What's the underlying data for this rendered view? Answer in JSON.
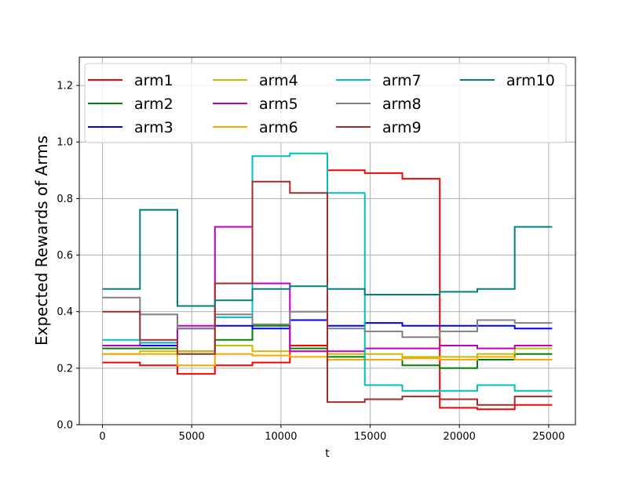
{
  "chart_data": {
    "type": "line",
    "step": true,
    "xlabel": "t",
    "ylabel": "Expected Rewards of Arms",
    "xlim": [
      -1300,
      26500
    ],
    "ylim": [
      0.0,
      1.3
    ],
    "xticks": [
      0,
      5000,
      10000,
      15000,
      20000,
      25000
    ],
    "xtick_labels": [
      "0",
      "5000",
      "10000",
      "15000",
      "20000",
      "25000"
    ],
    "yticks": [
      0.0,
      0.2,
      0.4,
      0.6,
      0.8,
      1.0,
      1.2
    ],
    "ytick_labels": [
      "0.0",
      "0.2",
      "0.4",
      "0.6",
      "0.8",
      "1.0",
      "1.2"
    ],
    "grid": true,
    "legend_position": "top",
    "legend_columns": 4,
    "breakpoints": [
      0,
      2100,
      4200,
      6300,
      8400,
      10500,
      12600,
      14700,
      16800,
      18900,
      21000,
      23100,
      25200
    ],
    "series": [
      {
        "name": "arm1",
        "color": "#ff0000",
        "values": [
          0.22,
          0.21,
          0.18,
          0.21,
          0.22,
          0.28,
          0.9,
          0.89,
          0.87,
          0.06,
          0.055,
          0.07
        ]
      },
      {
        "name": "arm2",
        "color": "#008000",
        "values": [
          0.27,
          0.27,
          0.26,
          0.3,
          0.35,
          0.27,
          0.24,
          0.23,
          0.21,
          0.2,
          0.23,
          0.25
        ]
      },
      {
        "name": "arm3",
        "color": "#0000ff",
        "values": [
          0.28,
          0.28,
          0.34,
          0.35,
          0.34,
          0.37,
          0.35,
          0.36,
          0.35,
          0.35,
          0.35,
          0.34
        ]
      },
      {
        "name": "arm4",
        "color": "#bfbf00",
        "values": [
          0.25,
          0.26,
          0.26,
          0.28,
          0.26,
          0.26,
          0.25,
          0.25,
          0.24,
          0.24,
          0.25,
          0.27
        ]
      },
      {
        "name": "arm5",
        "color": "#bf00bf",
        "values": [
          0.28,
          0.29,
          0.35,
          0.7,
          0.5,
          0.26,
          0.26,
          0.27,
          0.27,
          0.28,
          0.27,
          0.28
        ]
      },
      {
        "name": "arm6",
        "color": "#ffa500",
        "values": [
          0.25,
          0.25,
          0.21,
          0.25,
          0.245,
          0.24,
          0.23,
          0.23,
          0.235,
          0.23,
          0.24,
          0.23
        ]
      },
      {
        "name": "arm7",
        "color": "#00bfbf",
        "values": [
          0.3,
          0.29,
          0.25,
          0.38,
          0.95,
          0.96,
          0.82,
          0.14,
          0.12,
          0.12,
          0.14,
          0.12
        ]
      },
      {
        "name": "arm8",
        "color": "#808080",
        "values": [
          0.45,
          0.39,
          0.34,
          0.39,
          0.355,
          0.4,
          0.34,
          0.33,
          0.31,
          0.33,
          0.37,
          0.36
        ]
      },
      {
        "name": "arm9",
        "color": "#a52a2a",
        "values": [
          0.4,
          0.3,
          0.25,
          0.5,
          0.86,
          0.82,
          0.08,
          0.09,
          0.1,
          0.09,
          0.07,
          0.1
        ]
      },
      {
        "name": "arm10",
        "color": "#008080",
        "values": [
          0.48,
          0.76,
          0.42,
          0.44,
          0.48,
          0.49,
          0.48,
          0.46,
          0.46,
          0.47,
          0.48,
          0.7
        ]
      }
    ]
  }
}
